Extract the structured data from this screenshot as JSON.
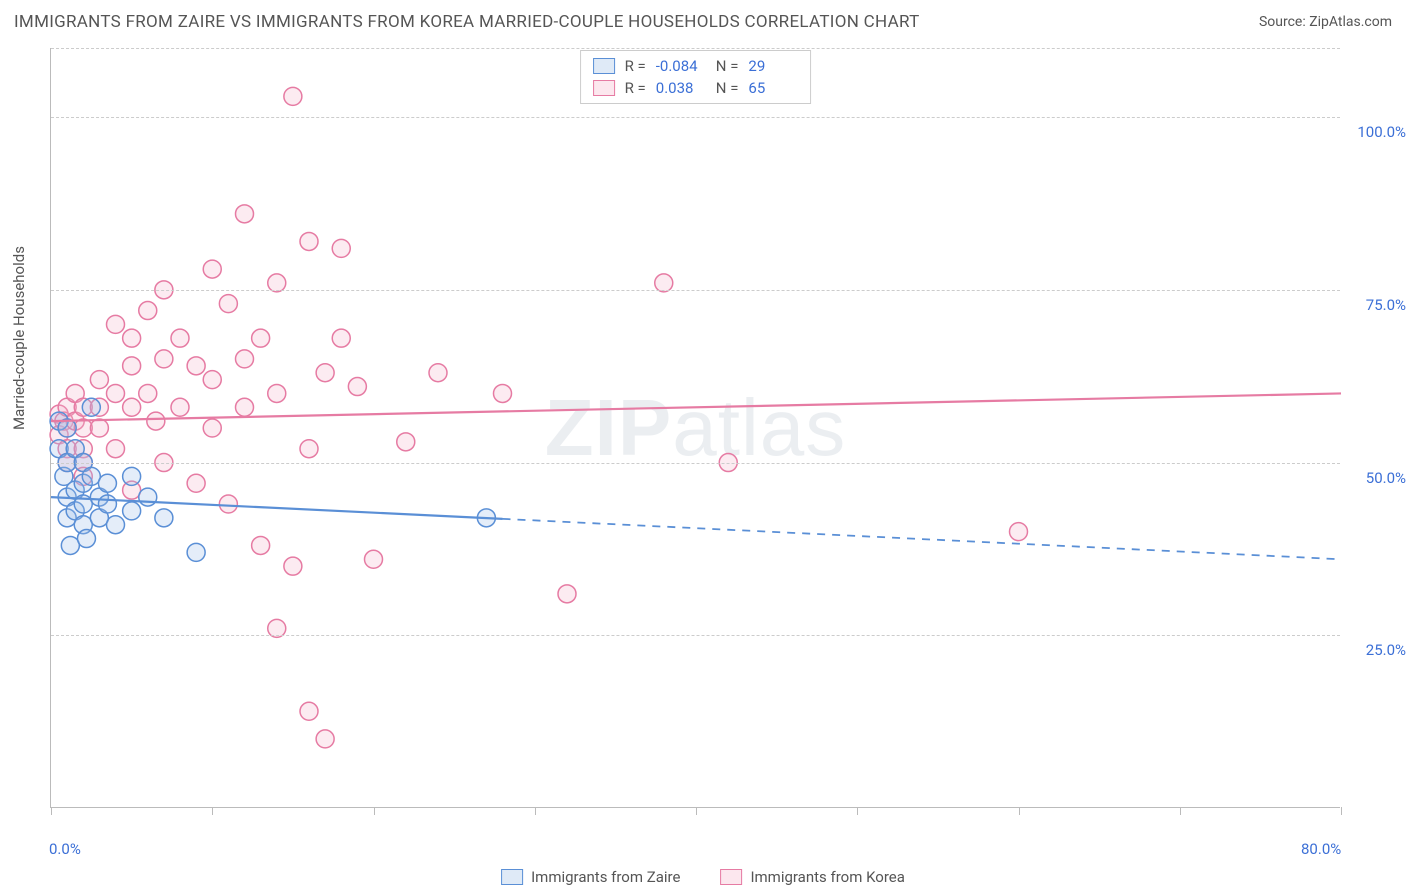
{
  "title": "IMMIGRANTS FROM ZAIRE VS IMMIGRANTS FROM KOREA MARRIED-COUPLE HOUSEHOLDS CORRELATION CHART",
  "source_label": "Source: ",
  "source_name": "ZipAtlas.com",
  "y_axis_label": "Married-couple Households",
  "watermark_bold": "ZIP",
  "watermark_rest": "atlas",
  "chart": {
    "type": "scatter",
    "xlim": [
      0,
      80
    ],
    "ylim": [
      0,
      110
    ],
    "x_ticks": [
      0,
      10,
      20,
      30,
      40,
      50,
      60,
      70,
      80
    ],
    "x_tick_labels_shown": {
      "0": "0.0%",
      "80": "80.0%"
    },
    "y_gridlines": [
      25,
      50,
      75,
      100,
      110
    ],
    "y_tick_labels": {
      "25": "25.0%",
      "50": "50.0%",
      "75": "75.0%",
      "100": "100.0%"
    },
    "background_color": "#ffffff",
    "grid_color": "#cccccc",
    "axis_color": "#bbbbbb",
    "marker_radius": 9,
    "marker_stroke_width": 1.5,
    "marker_fill_opacity": 0.28,
    "line_width": 2.2,
    "series": [
      {
        "key": "zaire",
        "label": "Immigrants from Zaire",
        "color_stroke": "#5a8fd6",
        "color_fill": "#9fc0e8",
        "R": "-0.084",
        "N": "29",
        "trend": {
          "x1": 0,
          "y1": 45,
          "x2": 80,
          "y2": 36,
          "solid_until_x": 28
        },
        "points": [
          [
            0.5,
            56
          ],
          [
            0.5,
            52
          ],
          [
            0.8,
            48
          ],
          [
            1,
            55
          ],
          [
            1,
            50
          ],
          [
            1,
            45
          ],
          [
            1,
            42
          ],
          [
            1.2,
            38
          ],
          [
            1.5,
            52
          ],
          [
            1.5,
            46
          ],
          [
            1.5,
            43
          ],
          [
            2,
            50
          ],
          [
            2,
            47
          ],
          [
            2,
            44
          ],
          [
            2,
            41
          ],
          [
            2.2,
            39
          ],
          [
            2.5,
            58
          ],
          [
            2.5,
            48
          ],
          [
            3,
            45
          ],
          [
            3,
            42
          ],
          [
            3.5,
            47
          ],
          [
            3.5,
            44
          ],
          [
            4,
            41
          ],
          [
            5,
            48
          ],
          [
            5,
            43
          ],
          [
            6,
            45
          ],
          [
            7,
            42
          ],
          [
            9,
            37
          ],
          [
            27,
            42
          ]
        ]
      },
      {
        "key": "korea",
        "label": "Immigrants from Korea",
        "color_stroke": "#e67ba3",
        "color_fill": "#f5b8cd",
        "R": "0.038",
        "N": "65",
        "trend": {
          "x1": 0,
          "y1": 56,
          "x2": 80,
          "y2": 60,
          "solid_until_x": 80
        },
        "points": [
          [
            0.5,
            57
          ],
          [
            0.5,
            54
          ],
          [
            0.8,
            56
          ],
          [
            1,
            58
          ],
          [
            1,
            55
          ],
          [
            1,
            52
          ],
          [
            1,
            50
          ],
          [
            1.5,
            60
          ],
          [
            1.5,
            56
          ],
          [
            2,
            58
          ],
          [
            2,
            55
          ],
          [
            2,
            52
          ],
          [
            2,
            50
          ],
          [
            2,
            48
          ],
          [
            3,
            62
          ],
          [
            3,
            58
          ],
          [
            3,
            55
          ],
          [
            4,
            70
          ],
          [
            4,
            60
          ],
          [
            4,
            52
          ],
          [
            5,
            68
          ],
          [
            5,
            64
          ],
          [
            5,
            58
          ],
          [
            5,
            46
          ],
          [
            6,
            72
          ],
          [
            6,
            60
          ],
          [
            6.5,
            56
          ],
          [
            7,
            75
          ],
          [
            7,
            65
          ],
          [
            7,
            50
          ],
          [
            8,
            68
          ],
          [
            8,
            58
          ],
          [
            9,
            64
          ],
          [
            9,
            47
          ],
          [
            10,
            78
          ],
          [
            10,
            62
          ],
          [
            10,
            55
          ],
          [
            11,
            73
          ],
          [
            11,
            44
          ],
          [
            12,
            86
          ],
          [
            12,
            65
          ],
          [
            12,
            58
          ],
          [
            13,
            68
          ],
          [
            13,
            38
          ],
          [
            14,
            76
          ],
          [
            14,
            60
          ],
          [
            14,
            26
          ],
          [
            15,
            103
          ],
          [
            15,
            35
          ],
          [
            16,
            82
          ],
          [
            16,
            52
          ],
          [
            16,
            14
          ],
          [
            17,
            63
          ],
          [
            17,
            10
          ],
          [
            18,
            81
          ],
          [
            18,
            68
          ],
          [
            19,
            61
          ],
          [
            20,
            36
          ],
          [
            22,
            53
          ],
          [
            24,
            63
          ],
          [
            28,
            60
          ],
          [
            32,
            31
          ],
          [
            38,
            76
          ],
          [
            42,
            50
          ],
          [
            60,
            40
          ]
        ]
      }
    ]
  },
  "legend_top": {
    "stat_label_R": "R =",
    "stat_label_N": "N ="
  }
}
